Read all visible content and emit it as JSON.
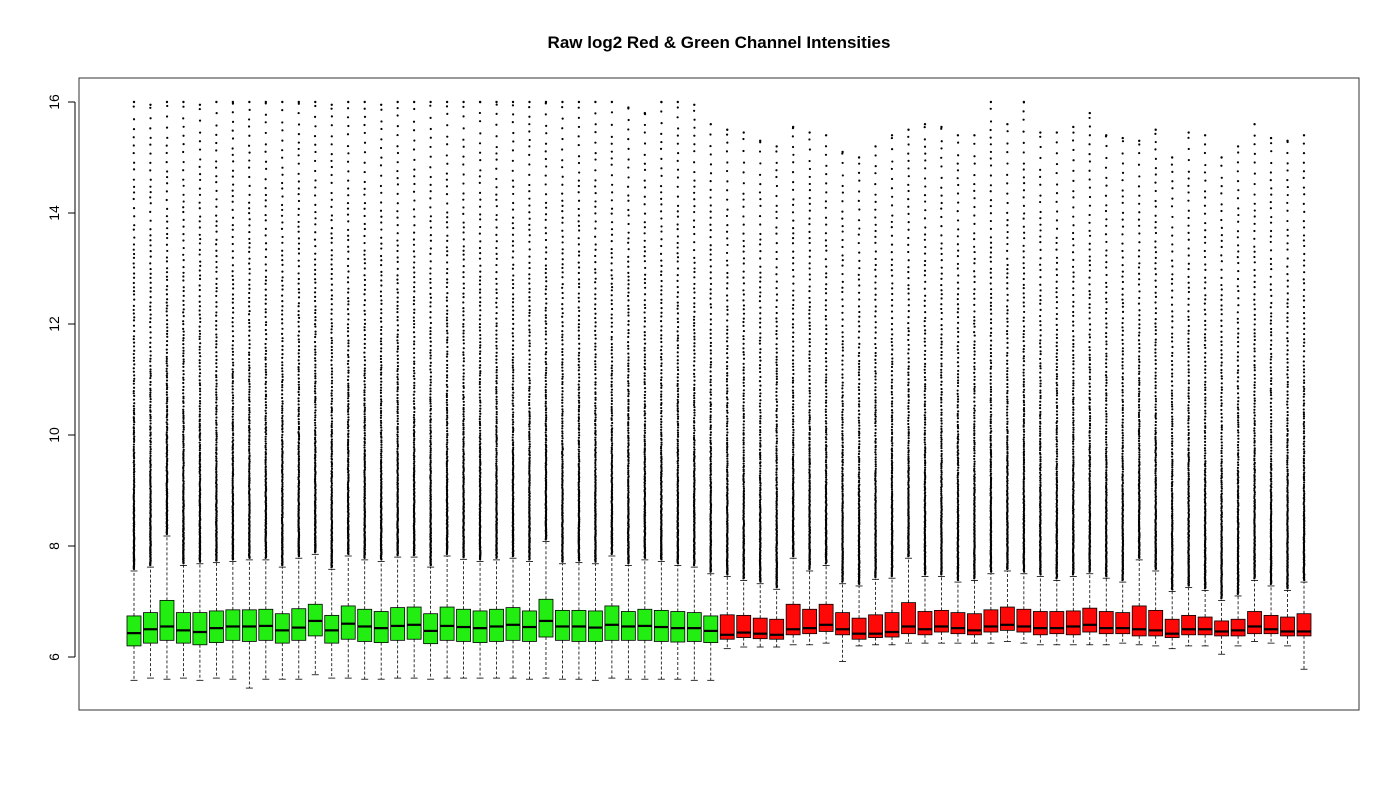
{
  "chart_data": {
    "type": "boxplot",
    "title": "Raw log2 Red & Green Channel Intensities",
    "xlabel": "",
    "ylabel": "",
    "ylim": [
      5.2,
      16.4
    ],
    "yticks": [
      6,
      8,
      10,
      12,
      14,
      16
    ],
    "x_axis_drawn": false,
    "grid": false,
    "legend": "none",
    "colors": {
      "green": "#22ee11",
      "red": "#ff0808",
      "outline": "#000000",
      "background": "#ffffff"
    },
    "series": [
      {
        "color_key": "green",
        "boxes": [
          {
            "min": 5.58,
            "q1": 6.2,
            "median": 6.43,
            "q3": 6.74,
            "max": 7.55,
            "outlier_max": 16.0
          },
          {
            "min": 5.62,
            "q1": 6.25,
            "median": 6.5,
            "q3": 6.8,
            "max": 7.62,
            "outlier_max": 15.95
          },
          {
            "min": 5.6,
            "q1": 6.3,
            "median": 6.55,
            "q3": 7.02,
            "max": 8.18,
            "outlier_max": 16.0
          },
          {
            "min": 5.62,
            "q1": 6.25,
            "median": 6.48,
            "q3": 6.8,
            "max": 7.65,
            "outlier_max": 16.0
          },
          {
            "min": 5.58,
            "q1": 6.22,
            "median": 6.45,
            "q3": 6.8,
            "max": 7.68,
            "outlier_max": 15.95
          },
          {
            "min": 5.62,
            "q1": 6.26,
            "median": 6.52,
            "q3": 6.83,
            "max": 7.7,
            "outlier_max": 16.0
          },
          {
            "min": 5.6,
            "q1": 6.3,
            "median": 6.55,
            "q3": 6.85,
            "max": 7.72,
            "outlier_max": 16.0
          },
          {
            "min": 5.44,
            "q1": 6.28,
            "median": 6.55,
            "q3": 6.85,
            "max": 7.75,
            "outlier_max": 16.0
          },
          {
            "min": 5.6,
            "q1": 6.3,
            "median": 6.56,
            "q3": 6.86,
            "max": 7.75,
            "outlier_max": 16.0
          },
          {
            "min": 5.6,
            "q1": 6.25,
            "median": 6.48,
            "q3": 6.78,
            "max": 7.62,
            "outlier_max": 16.0
          },
          {
            "min": 5.6,
            "q1": 6.3,
            "median": 6.53,
            "q3": 6.87,
            "max": 7.78,
            "outlier_max": 16.0
          },
          {
            "min": 5.68,
            "q1": 6.38,
            "median": 6.65,
            "q3": 6.95,
            "max": 7.85,
            "outlier_max": 16.0
          },
          {
            "min": 5.62,
            "q1": 6.25,
            "median": 6.48,
            "q3": 6.75,
            "max": 7.58,
            "outlier_max": 15.95
          },
          {
            "min": 5.62,
            "q1": 6.32,
            "median": 6.6,
            "q3": 6.92,
            "max": 7.82,
            "outlier_max": 16.0
          },
          {
            "min": 5.6,
            "q1": 6.28,
            "median": 6.55,
            "q3": 6.86,
            "max": 7.75,
            "outlier_max": 16.0
          },
          {
            "min": 5.6,
            "q1": 6.26,
            "median": 6.52,
            "q3": 6.82,
            "max": 7.72,
            "outlier_max": 15.95
          },
          {
            "min": 5.62,
            "q1": 6.3,
            "median": 6.56,
            "q3": 6.89,
            "max": 7.8,
            "outlier_max": 16.0
          },
          {
            "min": 5.62,
            "q1": 6.32,
            "median": 6.58,
            "q3": 6.9,
            "max": 7.8,
            "outlier_max": 16.0
          },
          {
            "min": 5.6,
            "q1": 6.24,
            "median": 6.47,
            "q3": 6.78,
            "max": 7.62,
            "outlier_max": 16.0
          },
          {
            "min": 5.62,
            "q1": 6.3,
            "median": 6.56,
            "q3": 6.9,
            "max": 7.82,
            "outlier_max": 16.0
          },
          {
            "min": 5.62,
            "q1": 6.28,
            "median": 6.54,
            "q3": 6.86,
            "max": 7.76,
            "outlier_max": 16.0
          },
          {
            "min": 5.62,
            "q1": 6.26,
            "median": 6.52,
            "q3": 6.83,
            "max": 7.72,
            "outlier_max": 16.0
          },
          {
            "min": 5.62,
            "q1": 6.28,
            "median": 6.55,
            "q3": 6.86,
            "max": 7.75,
            "outlier_max": 16.0
          },
          {
            "min": 5.62,
            "q1": 6.3,
            "median": 6.58,
            "q3": 6.89,
            "max": 7.78,
            "outlier_max": 16.0
          },
          {
            "min": 5.6,
            "q1": 6.28,
            "median": 6.54,
            "q3": 6.83,
            "max": 7.72,
            "outlier_max": 16.0
          },
          {
            "min": 5.62,
            "q1": 6.36,
            "median": 6.65,
            "q3": 7.04,
            "max": 8.08,
            "outlier_max": 16.0
          },
          {
            "min": 5.6,
            "q1": 6.3,
            "median": 6.55,
            "q3": 6.84,
            "max": 7.68,
            "outlier_max": 16.0
          },
          {
            "min": 5.6,
            "q1": 6.28,
            "median": 6.55,
            "q3": 6.84,
            "max": 7.7,
            "outlier_max": 16.0
          },
          {
            "min": 5.58,
            "q1": 6.28,
            "median": 6.53,
            "q3": 6.83,
            "max": 7.68,
            "outlier_max": 16.0
          },
          {
            "min": 5.62,
            "q1": 6.3,
            "median": 6.58,
            "q3": 6.92,
            "max": 7.82,
            "outlier_max": 16.0
          },
          {
            "min": 5.6,
            "q1": 6.3,
            "median": 6.55,
            "q3": 6.82,
            "max": 7.65,
            "outlier_max": 15.9
          },
          {
            "min": 5.6,
            "q1": 6.3,
            "median": 6.56,
            "q3": 6.86,
            "max": 7.75,
            "outlier_max": 15.8
          },
          {
            "min": 5.6,
            "q1": 6.28,
            "median": 6.54,
            "q3": 6.84,
            "max": 7.72,
            "outlier_max": 16.0
          },
          {
            "min": 5.6,
            "q1": 6.27,
            "median": 6.52,
            "q3": 6.82,
            "max": 7.65,
            "outlier_max": 16.0
          },
          {
            "min": 5.58,
            "q1": 6.28,
            "median": 6.52,
            "q3": 6.8,
            "max": 7.62,
            "outlier_max": 15.95
          },
          {
            "min": 5.58,
            "q1": 6.26,
            "median": 6.47,
            "q3": 6.74,
            "max": 7.5,
            "outlier_max": 15.6
          }
        ]
      },
      {
        "color_key": "red",
        "boxes": [
          {
            "min": 6.15,
            "q1": 6.32,
            "median": 6.4,
            "q3": 6.76,
            "max": 7.45,
            "outlier_max": 15.5
          },
          {
            "min": 6.18,
            "q1": 6.35,
            "median": 6.44,
            "q3": 6.75,
            "max": 7.38,
            "outlier_max": 15.45
          },
          {
            "min": 6.18,
            "q1": 6.33,
            "median": 6.42,
            "q3": 6.7,
            "max": 7.32,
            "outlier_max": 15.3
          },
          {
            "min": 6.18,
            "q1": 6.32,
            "median": 6.4,
            "q3": 6.68,
            "max": 7.22,
            "outlier_max": 15.2
          },
          {
            "min": 6.22,
            "q1": 6.4,
            "median": 6.5,
            "q3": 6.95,
            "max": 7.78,
            "outlier_max": 15.55
          },
          {
            "min": 6.22,
            "q1": 6.42,
            "median": 6.52,
            "q3": 6.86,
            "max": 7.55,
            "outlier_max": 15.45
          },
          {
            "min": 6.25,
            "q1": 6.46,
            "median": 6.58,
            "q3": 6.95,
            "max": 7.65,
            "outlier_max": 15.4
          },
          {
            "min": 5.92,
            "q1": 6.4,
            "median": 6.5,
            "q3": 6.8,
            "max": 7.32,
            "outlier_max": 15.1
          },
          {
            "min": 6.2,
            "q1": 6.32,
            "median": 6.42,
            "q3": 6.7,
            "max": 7.28,
            "outlier_max": 15.0
          },
          {
            "min": 6.22,
            "q1": 6.35,
            "median": 6.42,
            "q3": 6.76,
            "max": 7.4,
            "outlier_max": 15.2
          },
          {
            "min": 6.22,
            "q1": 6.36,
            "median": 6.45,
            "q3": 6.8,
            "max": 7.42,
            "outlier_max": 15.4
          },
          {
            "min": 6.25,
            "q1": 6.42,
            "median": 6.55,
            "q3": 6.98,
            "max": 7.78,
            "outlier_max": 15.5
          },
          {
            "min": 6.25,
            "q1": 6.4,
            "median": 6.5,
            "q3": 6.82,
            "max": 7.45,
            "outlier_max": 15.6
          },
          {
            "min": 6.25,
            "q1": 6.45,
            "median": 6.55,
            "q3": 6.84,
            "max": 7.45,
            "outlier_max": 15.55
          },
          {
            "min": 6.25,
            "q1": 6.42,
            "median": 6.52,
            "q3": 6.8,
            "max": 7.35,
            "outlier_max": 15.4
          },
          {
            "min": 6.25,
            "q1": 6.4,
            "median": 6.48,
            "q3": 6.78,
            "max": 7.38,
            "outlier_max": 15.4
          },
          {
            "min": 6.25,
            "q1": 6.45,
            "median": 6.55,
            "q3": 6.85,
            "max": 7.5,
            "outlier_max": 16.0
          },
          {
            "min": 6.28,
            "q1": 6.48,
            "median": 6.58,
            "q3": 6.9,
            "max": 7.55,
            "outlier_max": 15.6
          },
          {
            "min": 6.25,
            "q1": 6.45,
            "median": 6.55,
            "q3": 6.86,
            "max": 7.5,
            "outlier_max": 16.0
          },
          {
            "min": 6.22,
            "q1": 6.4,
            "median": 6.52,
            "q3": 6.82,
            "max": 7.45,
            "outlier_max": 15.45
          },
          {
            "min": 6.22,
            "q1": 6.42,
            "median": 6.52,
            "q3": 6.82,
            "max": 7.38,
            "outlier_max": 15.45
          },
          {
            "min": 6.22,
            "q1": 6.4,
            "median": 6.55,
            "q3": 6.83,
            "max": 7.45,
            "outlier_max": 15.55
          },
          {
            "min": 6.22,
            "q1": 6.45,
            "median": 6.58,
            "q3": 6.88,
            "max": 7.5,
            "outlier_max": 15.8
          },
          {
            "min": 6.22,
            "q1": 6.42,
            "median": 6.52,
            "q3": 6.82,
            "max": 7.42,
            "outlier_max": 15.4
          },
          {
            "min": 6.25,
            "q1": 6.42,
            "median": 6.52,
            "q3": 6.8,
            "max": 7.35,
            "outlier_max": 15.35
          },
          {
            "min": 6.22,
            "q1": 6.38,
            "median": 6.5,
            "q3": 6.92,
            "max": 7.75,
            "outlier_max": 15.3
          },
          {
            "min": 6.2,
            "q1": 6.38,
            "median": 6.48,
            "q3": 6.84,
            "max": 7.55,
            "outlier_max": 15.5
          },
          {
            "min": 6.15,
            "q1": 6.35,
            "median": 6.42,
            "q3": 6.68,
            "max": 7.18,
            "outlier_max": 15.0
          },
          {
            "min": 6.2,
            "q1": 6.4,
            "median": 6.5,
            "q3": 6.75,
            "max": 7.25,
            "outlier_max": 15.45
          },
          {
            "min": 6.2,
            "q1": 6.4,
            "median": 6.5,
            "q3": 6.72,
            "max": 7.2,
            "outlier_max": 15.4
          },
          {
            "min": 6.05,
            "q1": 6.38,
            "median": 6.46,
            "q3": 6.65,
            "max": 7.02,
            "outlier_max": 15.0
          },
          {
            "min": 6.2,
            "q1": 6.38,
            "median": 6.48,
            "q3": 6.68,
            "max": 7.1,
            "outlier_max": 15.2
          },
          {
            "min": 6.28,
            "q1": 6.42,
            "median": 6.55,
            "q3": 6.82,
            "max": 7.38,
            "outlier_max": 15.6
          },
          {
            "min": 6.25,
            "q1": 6.42,
            "median": 6.5,
            "q3": 6.75,
            "max": 7.28,
            "outlier_max": 15.35
          },
          {
            "min": 6.2,
            "q1": 6.38,
            "median": 6.46,
            "q3": 6.72,
            "max": 7.2,
            "outlier_max": 15.3
          },
          {
            "min": 5.78,
            "q1": 6.38,
            "median": 6.46,
            "q3": 6.78,
            "max": 7.35,
            "outlier_max": 15.4
          }
        ]
      }
    ]
  }
}
